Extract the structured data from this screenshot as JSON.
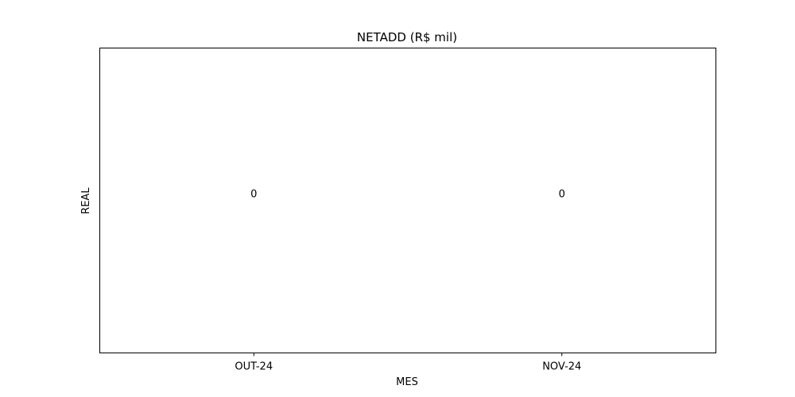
{
  "chart_data": {
    "type": "bar",
    "title": "NETADD (R$ mil)",
    "xlabel": "MES",
    "ylabel": "REAL",
    "categories": [
      "OUT-24",
      "NOV-24"
    ],
    "values": [
      0,
      0
    ],
    "data_labels": [
      "0",
      "0"
    ],
    "ylim": [
      -0.055,
      0.055
    ],
    "grid": false,
    "legend": "none",
    "colors": {
      "frame": "#000000",
      "text": "#000000",
      "background": "#ffffff"
    }
  }
}
